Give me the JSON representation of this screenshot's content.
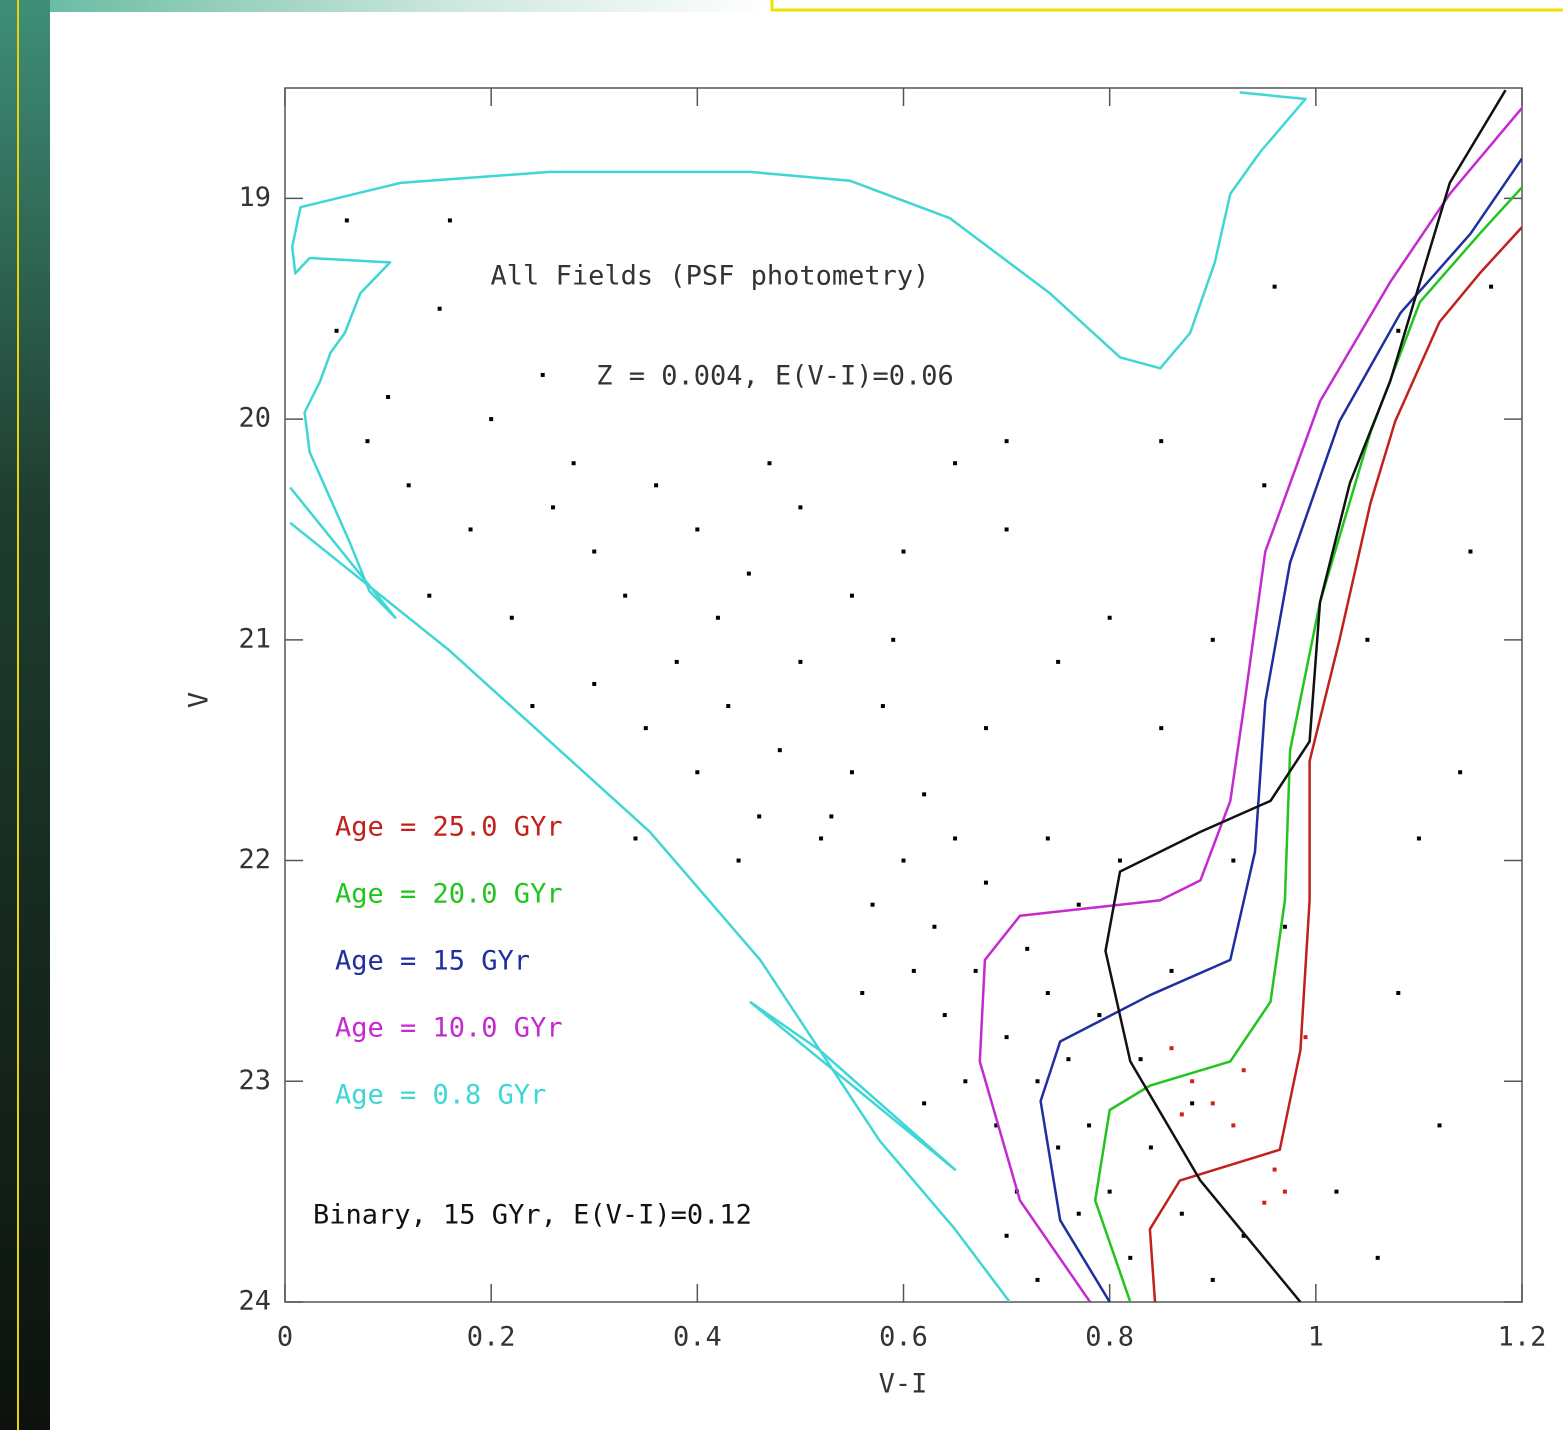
{
  "chart_data": {
    "type": "line",
    "xlabel": "V-I",
    "ylabel": "V",
    "annotations": [
      "All Fields (PSF photometry)",
      "Z = 0.004, E(V-I)=0.06"
    ],
    "xlim": [
      0,
      1.2
    ],
    "ylim": [
      24,
      18.5
    ],
    "xticks": [
      0,
      0.2,
      0.4,
      0.6,
      0.8,
      1,
      1.2
    ],
    "yticks": [
      19,
      20,
      21,
      22,
      23,
      24
    ],
    "series": [
      {
        "name": "Age = 25.0 GYr",
        "color": "#c0221b",
        "x": [
          0.844,
          0.839,
          0.868,
          0.965,
          0.985,
          0.994,
          0.994,
          1.023,
          1.053,
          1.077,
          1.12,
          1.159,
          1.2
        ],
        "values": [
          24.0,
          23.67,
          23.45,
          23.31,
          22.86,
          22.18,
          21.55,
          21.0,
          20.38,
          20.01,
          19.56,
          19.34,
          19.13
        ]
      },
      {
        "name": "Age = 20.0 GYr",
        "color": "#22c41e",
        "x": [
          0.82,
          0.786,
          0.8,
          0.839,
          0.917,
          0.956,
          0.97,
          0.975,
          1.004,
          1.053,
          1.101,
          1.159,
          1.2
        ],
        "values": [
          24.0,
          23.54,
          23.13,
          23.02,
          22.91,
          22.64,
          22.18,
          21.5,
          20.83,
          20.06,
          19.47,
          19.16,
          18.95
        ]
      },
      {
        "name": "Age = 15 GYr",
        "color": "#1f2fa0",
        "x": [
          0.8,
          0.752,
          0.733,
          0.752,
          0.839,
          0.917,
          0.941,
          0.951,
          0.975,
          1.023,
          1.082,
          1.15,
          1.2
        ],
        "values": [
          24.0,
          23.63,
          23.09,
          22.82,
          22.61,
          22.45,
          21.96,
          21.28,
          20.65,
          20.01,
          19.52,
          19.16,
          18.82
        ]
      },
      {
        "name": "Age = 10.0 GYr",
        "color": "#c52ad0",
        "x": [
          0.781,
          0.713,
          0.674,
          0.679,
          0.713,
          0.791,
          0.849,
          0.888,
          0.917,
          0.931,
          0.951,
          1.004,
          1.072,
          1.13,
          1.2
        ],
        "values": [
          24.0,
          23.54,
          22.91,
          22.45,
          22.25,
          22.21,
          22.18,
          22.09,
          21.73,
          21.28,
          20.6,
          19.92,
          19.38,
          18.98,
          18.59
        ]
      },
      {
        "name": "Age = 0.8 GYr",
        "color": "#3fd6d6",
        "x": [
          0.703,
          0.65,
          0.577,
          0.461,
          0.354,
          0.16,
          0.005,
          null,
          0.005,
          0.107,
          0.082,
          0.063,
          0.024,
          0.019,
          0.034,
          0.044,
          0.058,
          0.073,
          0.102,
          0.024,
          0.01,
          0.007,
          0.015,
          0.112,
          0.257,
          0.451,
          0.548,
          0.645,
          0.742,
          0.81,
          0.849,
          0.878,
          0.902,
          0.917,
          0.946,
          0.99,
          0.926,
          null,
          0.451,
          0.65,
          0.519,
          0.451
        ],
        "values": [
          24.0,
          23.67,
          23.27,
          22.45,
          21.87,
          21.05,
          20.47,
          null,
          20.31,
          20.9,
          20.78,
          20.56,
          20.15,
          19.97,
          19.83,
          19.7,
          19.61,
          19.43,
          19.29,
          19.27,
          19.34,
          19.22,
          19.04,
          18.93,
          18.88,
          18.88,
          18.92,
          19.09,
          19.43,
          19.72,
          19.77,
          19.61,
          19.29,
          18.98,
          18.79,
          18.55,
          18.52,
          null,
          22.64,
          23.4,
          22.86,
          22.64
        ]
      },
      {
        "name": "Binary, 15 GYr, E(V-I)=0.12",
        "color": "#111111",
        "x": [
          0.985,
          0.888,
          0.82,
          0.796,
          0.81,
          0.888,
          0.956,
          0.994,
          1.004,
          1.033,
          1.072,
          1.13,
          1.184
        ],
        "values": [
          24.0,
          23.45,
          22.91,
          22.41,
          22.05,
          21.87,
          21.73,
          21.46,
          20.83,
          20.29,
          19.83,
          18.93,
          18.51
        ]
      }
    ],
    "points": [
      {
        "color": "#000000",
        "x": [
          0.05,
          0.08,
          0.12,
          0.15,
          0.2,
          0.25,
          0.1,
          0.18,
          0.22,
          0.28,
          0.3,
          0.26,
          0.33,
          0.36,
          0.4,
          0.42,
          0.45,
          0.5,
          0.55,
          0.6,
          0.65,
          0.7,
          0.75,
          0.8,
          0.85,
          0.9,
          0.95,
          1.05,
          1.1,
          1.15,
          0.96,
          0.3,
          0.35,
          0.38,
          0.4,
          0.43,
          0.46,
          0.48,
          0.5,
          0.52,
          0.55,
          0.58,
          0.6,
          0.62,
          0.63,
          0.65,
          0.67,
          0.68,
          0.7,
          0.72,
          0.73,
          0.74,
          0.75,
          0.76,
          0.77,
          0.78,
          0.8,
          0.82,
          0.69,
          0.71,
          0.66,
          0.64,
          0.61,
          0.57,
          0.53,
          0.7,
          0.73,
          0.84,
          0.87,
          0.9,
          0.93,
          0.79,
          0.83,
          0.88,
          0.86,
          0.92,
          0.97,
          1.02,
          1.06,
          1.08,
          1.12,
          1.14,
          0.59,
          0.47,
          0.44,
          0.56,
          0.68,
          0.74,
          0.62,
          0.77,
          0.81,
          0.85,
          0.7,
          0.14,
          0.24,
          0.34,
          0.06,
          0.16,
          1.08,
          1.17
        ],
        "values": [
          19.6,
          20.1,
          20.3,
          19.5,
          20.0,
          19.8,
          19.9,
          20.5,
          20.9,
          20.2,
          20.6,
          20.4,
          20.8,
          20.3,
          20.5,
          20.9,
          20.7,
          20.4,
          20.8,
          20.6,
          20.2,
          20.5,
          21.1,
          20.9,
          21.4,
          21.0,
          20.3,
          21.0,
          21.9,
          20.6,
          19.4,
          21.2,
          21.4,
          21.1,
          21.6,
          21.3,
          21.8,
          21.5,
          21.1,
          21.9,
          21.6,
          21.3,
          22.0,
          21.7,
          22.3,
          21.9,
          22.5,
          22.1,
          22.8,
          22.4,
          23.0,
          22.6,
          23.3,
          22.9,
          23.6,
          23.2,
          23.5,
          23.8,
          23.2,
          23.5,
          23.0,
          22.7,
          22.5,
          22.2,
          21.8,
          23.7,
          23.9,
          23.3,
          23.6,
          23.9,
          23.7,
          22.7,
          22.9,
          23.1,
          22.5,
          22.0,
          22.3,
          23.5,
          23.8,
          22.6,
          23.2,
          21.6,
          21.0,
          20.2,
          22.0,
          22.6,
          21.4,
          21.9,
          23.1,
          22.2,
          22.0,
          20.1,
          20.1,
          20.8,
          21.3,
          21.9,
          19.1,
          19.1,
          19.6,
          19.4
        ]
      },
      {
        "color": "#d0201a",
        "x": [
          0.86,
          0.88,
          0.9,
          0.92,
          0.96,
          0.93,
          0.87,
          0.97,
          0.99,
          0.95
        ],
        "values": [
          22.85,
          23.0,
          23.1,
          23.2,
          23.4,
          22.95,
          23.15,
          23.5,
          22.8,
          23.55
        ]
      }
    ]
  }
}
